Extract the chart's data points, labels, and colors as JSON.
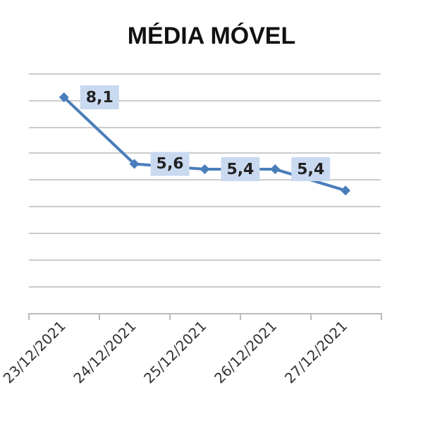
{
  "chart_data": {
    "type": "line",
    "title": "MÉDIA MÓVEL",
    "categories": [
      "23/12/2021",
      "24/12/2021",
      "25/12/2021",
      "26/12/2021",
      "27/12/2021"
    ],
    "series": [
      {
        "color": "#4a7ebb",
        "values": [
          8.1,
          5.6,
          5.4,
          5.4,
          4.6
        ],
        "value_labels": [
          "8,1",
          "5,6",
          "5,4",
          "5,4",
          null
        ]
      }
    ],
    "ylim": [
      0,
      9
    ],
    "yticks": [
      {
        "value": 0,
        "label": null
      },
      {
        "value": 1,
        "label": null
      },
      {
        "value": 2,
        "label": null
      },
      {
        "value": 3,
        "label": null
      },
      {
        "value": 4,
        "label": null
      },
      {
        "value": 5,
        "label": null
      },
      {
        "value": 6,
        "label": null
      },
      {
        "value": 7,
        "label": null
      },
      {
        "value": 8,
        "label": null
      },
      {
        "value": 9,
        "label": null
      }
    ],
    "grid": "y",
    "marker": "diamond",
    "line_style": "solid",
    "tick_labels": "x"
  }
}
